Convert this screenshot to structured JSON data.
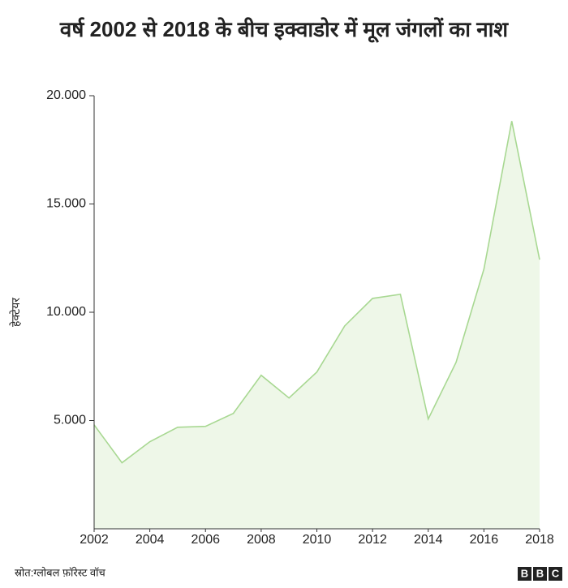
{
  "chart_data": {
    "type": "area",
    "title": "वर्ष 2002 से 2018 के बीच इक्वाडोर में मूल जंगलों का नाश",
    "y_label": "हेक्टेयर",
    "source": "स्रोत:ग्लोबल फ़ॉरेस्ट वॉच",
    "logo": [
      "B",
      "B",
      "C"
    ],
    "x": [
      2002,
      2003,
      2004,
      2005,
      2006,
      2007,
      2008,
      2009,
      2010,
      2011,
      2012,
      2013,
      2014,
      2015,
      2016,
      2017,
      2018
    ],
    "values": [
      4800,
      3050,
      4020,
      4690,
      4730,
      5330,
      7090,
      6040,
      7240,
      9370,
      10640,
      10830,
      5070,
      7690,
      11990,
      18830,
      12430
    ],
    "color": "#a8d892",
    "area_color": "#eef7e8",
    "xlim": [
      2002,
      2018
    ],
    "xticks": [
      2002,
      2004,
      2006,
      2008,
      2010,
      2012,
      2014,
      2016,
      2018
    ],
    "ylim": [
      0,
      20000
    ],
    "yticks": [
      {
        "value": 5000,
        "label": "5.000"
      },
      {
        "value": 10000,
        "label": "10.000"
      },
      {
        "value": 15000,
        "label": "15.000"
      },
      {
        "value": 20000,
        "label": "20.000"
      }
    ]
  }
}
